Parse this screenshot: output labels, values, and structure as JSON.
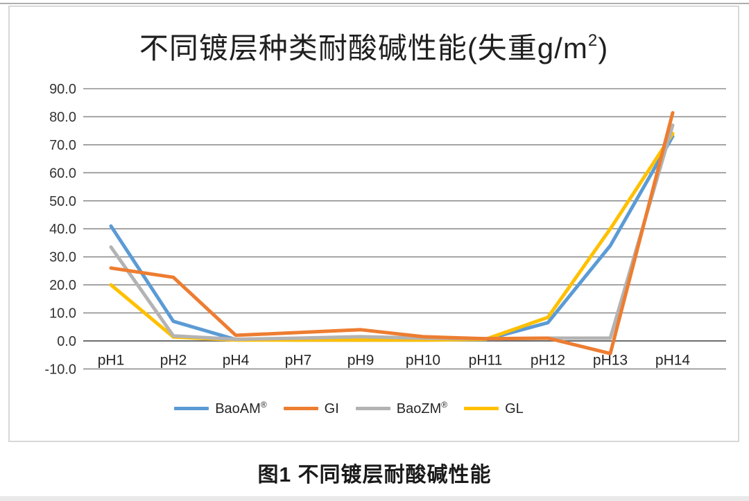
{
  "header": {
    "title_main": "不同镀层种类耐酸碱性能(失重g/m",
    "title_sup": "2",
    "title_close": ")"
  },
  "caption": "图1 不同镀层耐酸碱性能",
  "legend": {
    "items": [
      {
        "label": "BaoAM",
        "sup": "®"
      },
      {
        "label": "GI",
        "sup": ""
      },
      {
        "label": "BaoZM",
        "sup": "®"
      },
      {
        "label": "GL",
        "sup": ""
      }
    ]
  },
  "chart_data": {
    "type": "line",
    "title": "不同镀层种类耐酸碱性能(失重g/m²)",
    "categories": [
      "pH1",
      "pH2",
      "pH4",
      "pH7",
      "pH9",
      "pH10",
      "pH11",
      "pH12",
      "pH13",
      "pH14"
    ],
    "series": [
      {
        "name": "BaoAM®",
        "color": "#5B9BD5",
        "values": [
          41.0,
          7.0,
          0.5,
          0.3,
          0.3,
          0.3,
          0.5,
          6.5,
          34.0,
          73.0
        ]
      },
      {
        "name": "GI",
        "color": "#ED7D31",
        "values": [
          26.0,
          22.7,
          2.0,
          3.0,
          4.0,
          1.5,
          0.8,
          1.0,
          -4.5,
          81.4
        ]
      },
      {
        "name": "BaoZM®",
        "color": "#B3B3B3",
        "values": [
          33.5,
          1.8,
          0.6,
          1.0,
          1.5,
          1.0,
          0.8,
          1.0,
          1.0,
          77.0
        ]
      },
      {
        "name": "GL",
        "color": "#FFC000",
        "values": [
          20.0,
          1.4,
          0.3,
          0.3,
          0.3,
          0.3,
          0.6,
          8.4,
          40.0,
          74.0
        ]
      }
    ],
    "ylim": [
      -10,
      90
    ],
    "yticks": [
      90,
      80,
      70,
      60,
      50,
      40,
      30,
      20,
      10,
      0,
      -10
    ],
    "ytick_labels": [
      "90.0",
      "80.0",
      "70.0",
      "60.0",
      "50.0",
      "40.0",
      "30.0",
      "20.0",
      "10.0",
      "0.0",
      "-10.0"
    ],
    "grid": true,
    "legend_position": "bottom",
    "grid_color": "#8f8f8f",
    "zero_line_color": "#6e6e6e",
    "tick_label_color": "#333333"
  }
}
